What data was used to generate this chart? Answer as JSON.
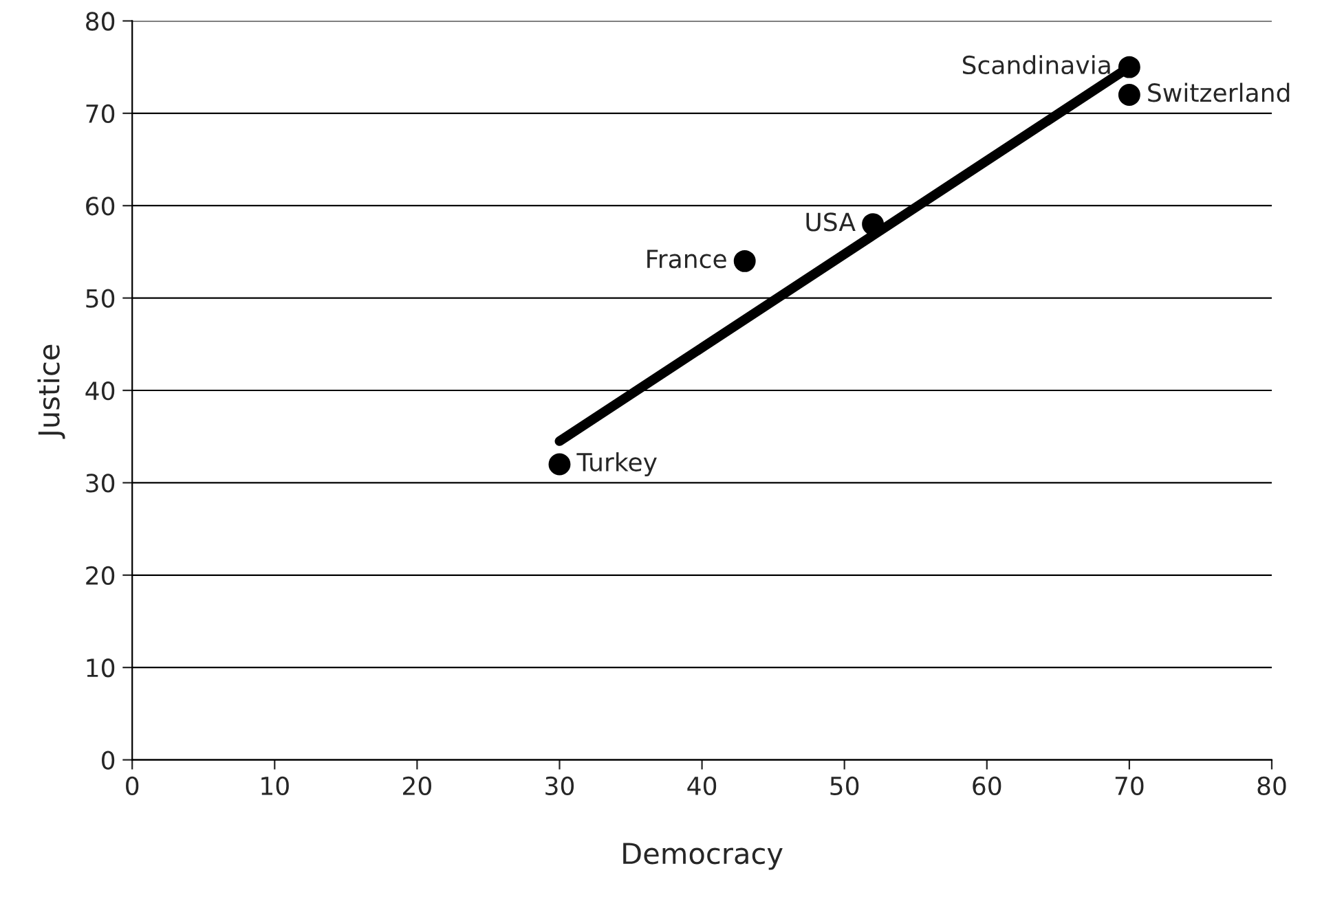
{
  "chart_data": {
    "type": "scatter",
    "xlabel": "Democracy",
    "ylabel": "Justice",
    "series": [
      {
        "color": "#000000",
        "marker": "circle",
        "x": [
          30,
          43,
          52,
          70,
          70
        ],
        "values": [
          32,
          54,
          58,
          75,
          72
        ]
      },
      {
        "type": "line",
        "marker": "none",
        "color": "#000000",
        "x": [
          30,
          70
        ],
        "values": [
          34.5,
          75
        ]
      }
    ],
    "annotations": [
      {
        "text": "Turkey",
        "x": 30,
        "y": 32
      },
      {
        "text": "France",
        "x": 43,
        "y": 54
      },
      {
        "text": "USA",
        "x": 52,
        "y": 58
      },
      {
        "text": "Scandinavia",
        "x": 70,
        "y": 75
      },
      {
        "text": "Switzerland",
        "x": 70,
        "y": 72
      }
    ],
    "xlim": [
      0,
      80
    ],
    "ylim": [
      0,
      80
    ],
    "xticks": [
      0,
      10,
      20,
      30,
      40,
      50,
      60,
      70,
      80
    ],
    "yticks": [
      0,
      10,
      20,
      30,
      40,
      50,
      60,
      70,
      80
    ],
    "grid": "y",
    "legend": false
  }
}
